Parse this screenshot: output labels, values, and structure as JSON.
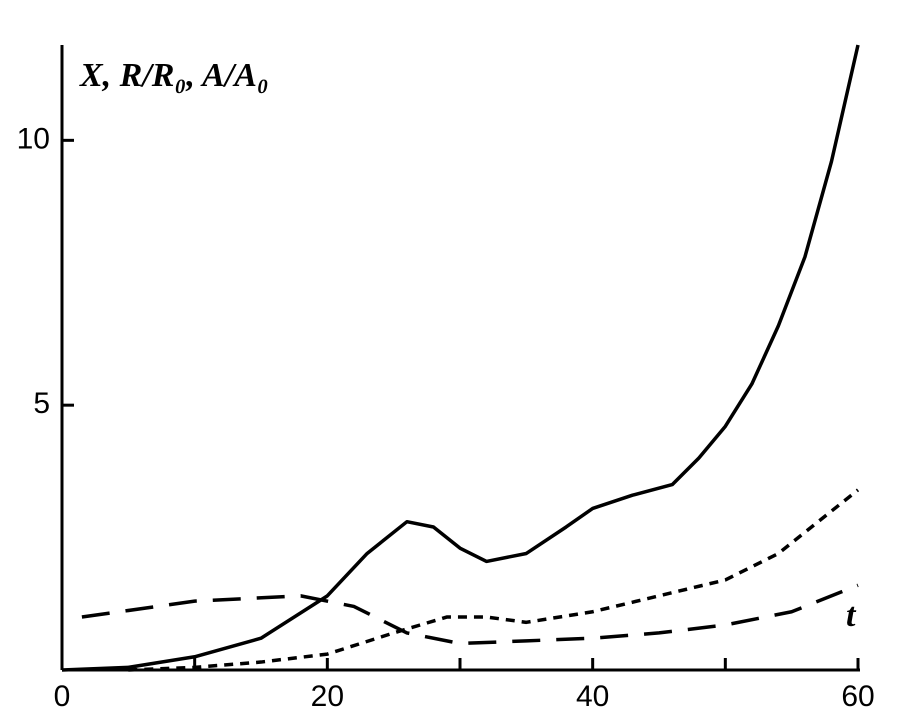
{
  "chart_data": {
    "type": "line",
    "y_label": "X, R/R₀, A/A₀",
    "annotation": "t",
    "xlim": [
      0,
      60
    ],
    "ylim": [
      0,
      11.8
    ],
    "xticks": [
      0,
      20,
      40,
      60
    ],
    "xminorticks": [
      10,
      30,
      50
    ],
    "yticks": [
      5,
      10
    ],
    "series": [
      {
        "color": "#000000",
        "dash": "none",
        "x": [
          0,
          5,
          10,
          15,
          20,
          23,
          26,
          28,
          30,
          32,
          35,
          38,
          40,
          43,
          46,
          48,
          50,
          52,
          54,
          56,
          58,
          60
        ],
        "values": [
          0,
          0.05,
          0.25,
          0.6,
          1.4,
          2.2,
          2.8,
          2.7,
          2.3,
          2.05,
          2.2,
          2.7,
          3.05,
          3.3,
          3.5,
          4.0,
          4.6,
          5.4,
          6.5,
          7.8,
          9.6,
          11.8
        ]
      },
      {
        "color": "#000000",
        "dash": "9,7",
        "x": [
          5,
          10,
          15,
          20,
          25,
          29,
          32,
          35,
          40,
          45,
          50,
          54,
          58,
          60
        ],
        "values": [
          0,
          0.05,
          0.15,
          0.3,
          0.7,
          1.0,
          1.0,
          0.9,
          1.1,
          1.4,
          1.7,
          2.2,
          3.0,
          3.4
        ]
      },
      {
        "color": "#000000",
        "dash": "28,16",
        "x": [
          1.5,
          10,
          18,
          22,
          26,
          30,
          35,
          40,
          45,
          50,
          55,
          60
        ],
        "values": [
          1.0,
          1.3,
          1.4,
          1.2,
          0.7,
          0.5,
          0.55,
          0.6,
          0.7,
          0.85,
          1.1,
          1.6
        ]
      }
    ]
  }
}
